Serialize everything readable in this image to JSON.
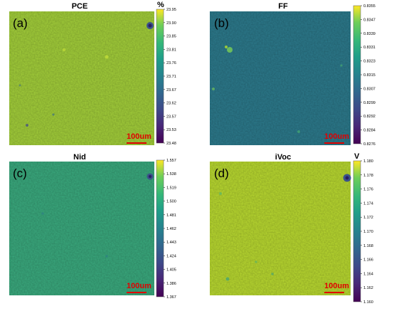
{
  "figure": {
    "scale_bar_label": "100um",
    "colors": {
      "viridis_low": "#440154",
      "viridis_mid": "#21918c",
      "viridis_high": "#fde725",
      "scale_bar": "#e00000"
    }
  },
  "chart_data": [
    {
      "type": "heatmap",
      "panel_label": "(a)",
      "title": "PCE",
      "colorbar_unit": "%",
      "colorbar_ticks": [
        "23.95",
        "23.90",
        "23.85",
        "23.81",
        "23.76",
        "23.71",
        "23.67",
        "23.62",
        "23.57",
        "23.53",
        "23.48"
      ],
      "range": [
        23.48,
        23.95
      ],
      "typical_value": 23.83,
      "colormap": "viridis",
      "features": [
        "dark spot at top-right corner",
        "scattered darker speckles near bottom-left"
      ]
    },
    {
      "type": "heatmap",
      "panel_label": "(b)",
      "title": "FF",
      "colorbar_unit": "",
      "colorbar_ticks": [
        "0.8355",
        "0.8347",
        "0.8339",
        "0.8331",
        "0.8323",
        "0.8315",
        "0.8307",
        "0.8299",
        "0.8292",
        "0.8284",
        "0.8276"
      ],
      "range": [
        0.8276,
        0.8355
      ],
      "typical_value": 0.83,
      "colormap": "viridis",
      "features": [
        "bright spots near upper-left"
      ]
    },
    {
      "type": "heatmap",
      "panel_label": "(c)",
      "title": "Nid",
      "colorbar_unit": "",
      "colorbar_ticks": [
        "1.557",
        "1.538",
        "1.519",
        "1.500",
        "1.481",
        "1.462",
        "1.443",
        "1.424",
        "1.405",
        "1.386",
        "1.367"
      ],
      "range": [
        1.367,
        1.557
      ],
      "typical_value": 1.47,
      "colormap": "viridis",
      "features": [
        "dark spot at top-right corner"
      ]
    },
    {
      "type": "heatmap",
      "panel_label": "(d)",
      "title": "iVoc",
      "colorbar_unit": "V",
      "colorbar_ticks": [
        "1.180",
        "1.178",
        "1.176",
        "1.174",
        "1.172",
        "1.170",
        "1.168",
        "1.166",
        "1.164",
        "1.162",
        "1.160"
      ],
      "range": [
        1.16,
        1.18
      ],
      "typical_value": 1.175,
      "colormap": "viridis",
      "features": [
        "dark spot at top-right corner",
        "darker speckles near bottom-left"
      ]
    }
  ]
}
